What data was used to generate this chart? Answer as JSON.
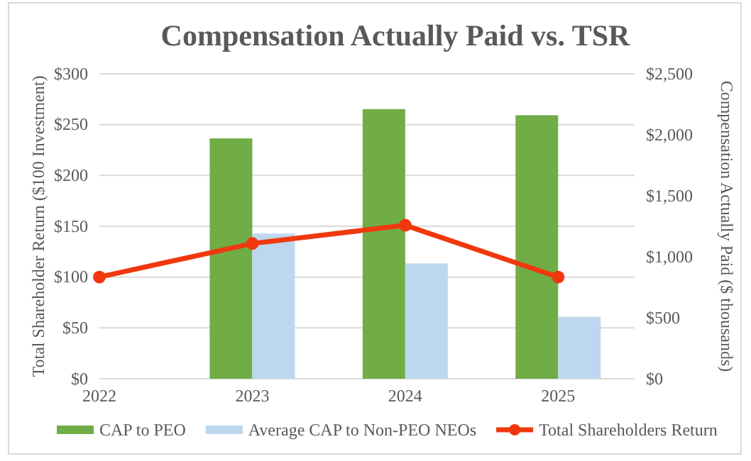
{
  "chart_data": {
    "type": "bar",
    "title": "Compensation Actually Paid vs. TSR",
    "categories": [
      "2022",
      "2023",
      "2024",
      "2025"
    ],
    "series": [
      {
        "name": "CAP to PEO",
        "color": "#70ad47",
        "axis": "y2",
        "values": [
          null,
          1970,
          2210,
          2160
        ]
      },
      {
        "name": "Average CAP to Non-PEO NEOs",
        "color": "#bdd7ee",
        "axis": "y2",
        "values": [
          null,
          1190,
          945,
          508
        ]
      },
      {
        "name": "Total Shareholders Return",
        "type": "line",
        "color": "#f0380f",
        "marker": "circle",
        "values": [
          100,
          133,
          151,
          100
        ]
      }
    ],
    "ylabel": "Total Shareholder Return ($100 Investment)",
    "y2label": "Compensation Actually Paid ($ thousands)",
    "ylim": [
      0,
      300
    ],
    "yticks": [
      {
        "value": 0,
        "label": "$0"
      },
      {
        "value": 50,
        "label": "$50"
      },
      {
        "value": 100,
        "label": "$100"
      },
      {
        "value": 150,
        "label": "$150"
      },
      {
        "value": 200,
        "label": "$200"
      },
      {
        "value": 250,
        "label": "$250"
      },
      {
        "value": 300,
        "label": "$300"
      }
    ],
    "y2lim": [
      0,
      2500
    ],
    "y2ticks": [
      {
        "value": 0,
        "label": "$0"
      },
      {
        "value": 500,
        "label": "$500"
      },
      {
        "value": 1000,
        "label": "$1,000"
      },
      {
        "value": 1500,
        "label": "$1,500"
      },
      {
        "value": 2000,
        "label": "$2,000"
      },
      {
        "value": 2500,
        "label": "$2,500"
      }
    ],
    "grid": "y",
    "legend": "bottom"
  }
}
